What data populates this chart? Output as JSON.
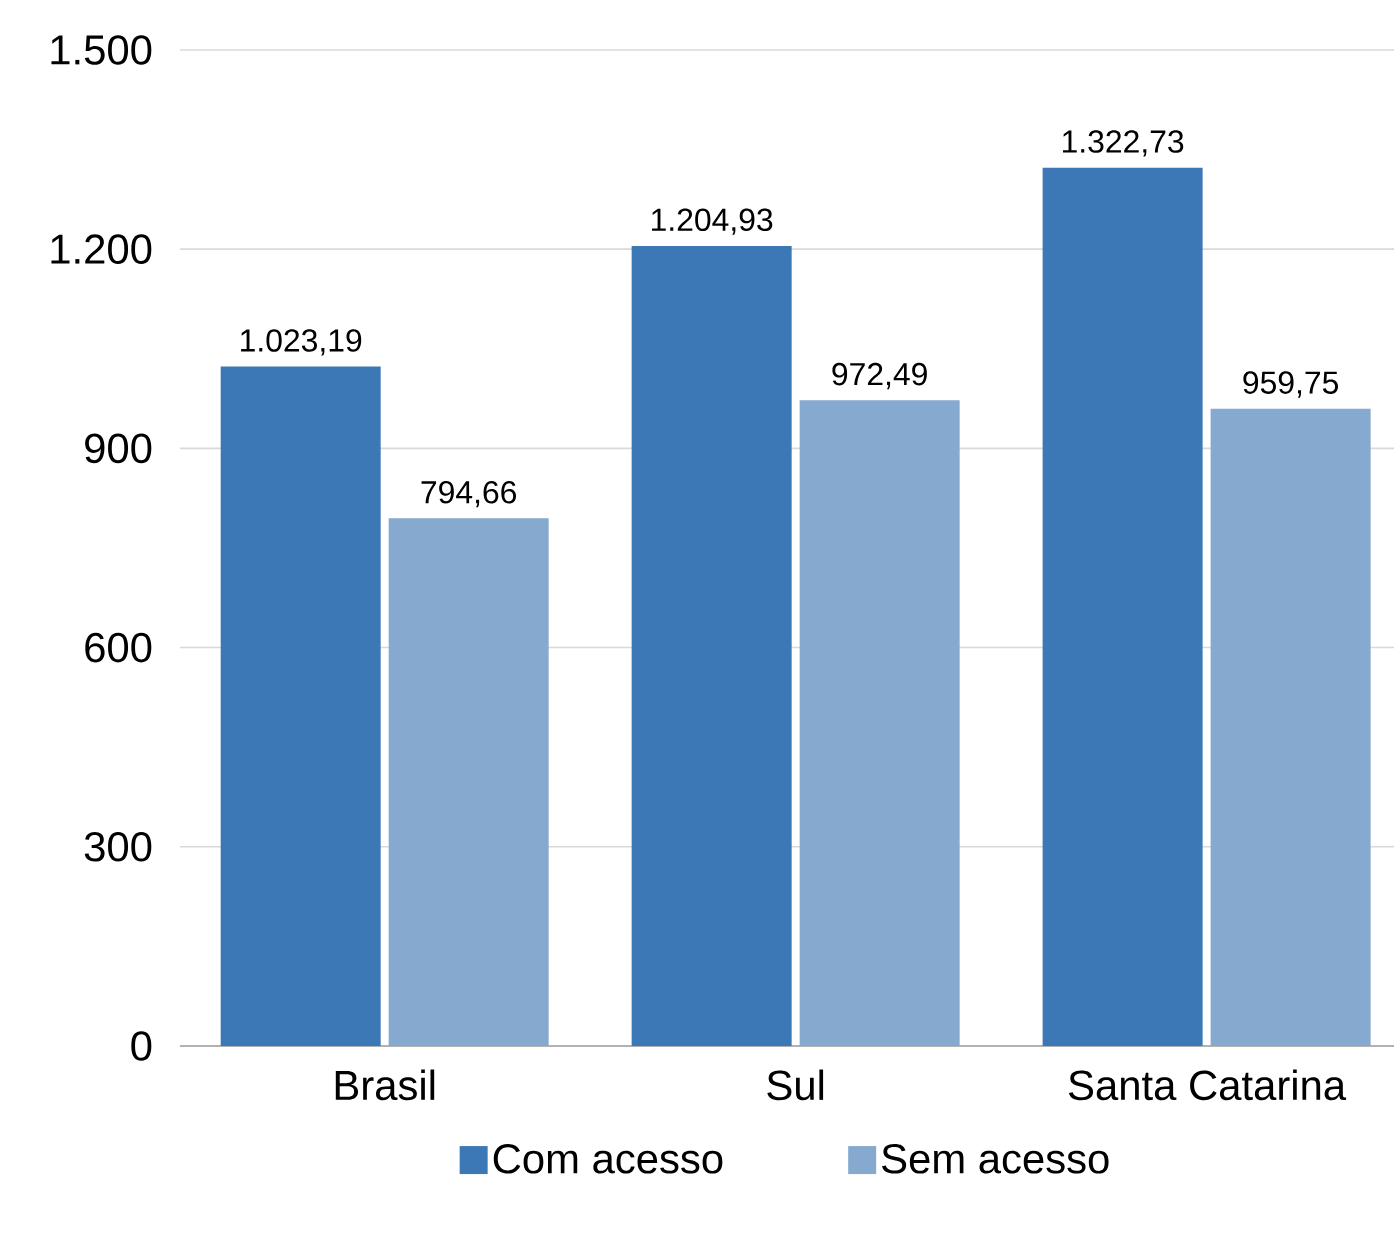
{
  "chart_data": {
    "type": "bar",
    "categories": [
      "Brasil",
      "Sul",
      "Santa Catarina"
    ],
    "series": [
      {
        "name": "Com acesso",
        "color": "#3b78b5",
        "values": [
          1023.19,
          1204.93,
          1322.73
        ],
        "value_labels": [
          "1.023,19",
          "1.204,93",
          "1.322,73"
        ]
      },
      {
        "name": "Sem acesso",
        "color": "#85a9cf",
        "values": [
          794.66,
          972.49,
          959.75
        ],
        "value_labels": [
          "794,66",
          "972,49",
          "959,75"
        ]
      }
    ],
    "ylim": [
      0,
      1500
    ],
    "yticks": [
      0,
      300,
      600,
      900,
      {
        "value": 1200,
        "label": "1.200"
      },
      {
        "value": 1500,
        "label": "1.500"
      }
    ],
    "grid": "y",
    "legend": "bottom"
  }
}
